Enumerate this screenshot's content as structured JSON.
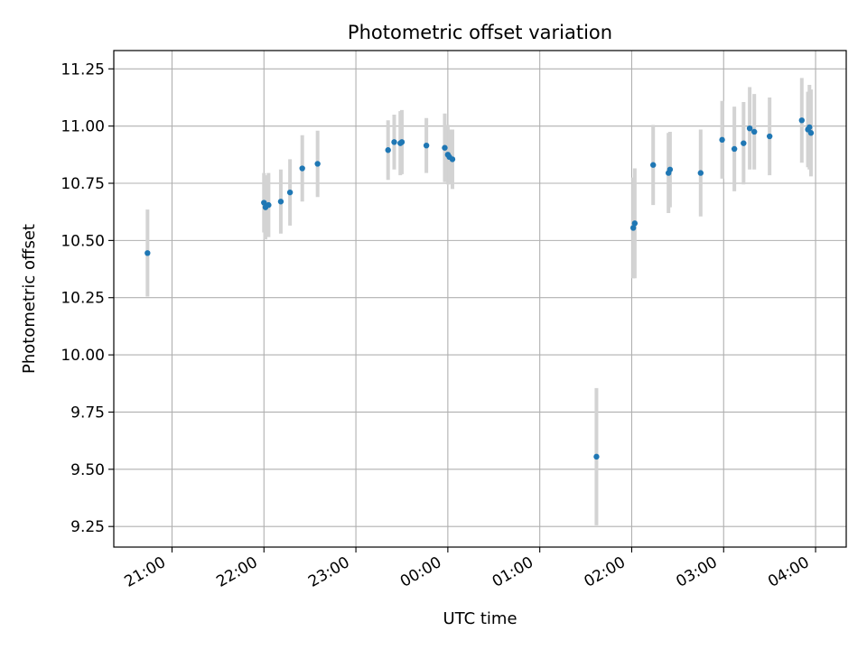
{
  "chart_data": {
    "type": "scatter",
    "title": "Photometric offset variation",
    "xlabel": "UTC time",
    "ylabel": "Photometric offset",
    "x_is_time": true,
    "xlim": [
      "20:22",
      "04:20"
    ],
    "ylim": [
      9.16,
      11.33
    ],
    "x_ticks": [
      "21:00",
      "22:00",
      "23:00",
      "00:00",
      "01:00",
      "02:00",
      "03:00",
      "04:00"
    ],
    "y_ticks": [
      "9.25",
      "9.50",
      "9.75",
      "10.00",
      "10.25",
      "10.50",
      "10.75",
      "11.00",
      "11.25"
    ],
    "grid": true,
    "marker_color": "#1f77b4",
    "errorbar_color": "#d3d3d3",
    "points": [
      {
        "t": "20:44",
        "y": 10.445,
        "err": 0.19
      },
      {
        "t": "22:00",
        "y": 10.665,
        "err": 0.13
      },
      {
        "t": "22:01",
        "y": 10.645,
        "err": 0.14
      },
      {
        "t": "22:03",
        "y": 10.655,
        "err": 0.14
      },
      {
        "t": "22:11",
        "y": 10.67,
        "err": 0.14
      },
      {
        "t": "22:17",
        "y": 10.71,
        "err": 0.145
      },
      {
        "t": "22:25",
        "y": 10.815,
        "err": 0.145
      },
      {
        "t": "22:35",
        "y": 10.835,
        "err": 0.145
      },
      {
        "t": "23:21",
        "y": 10.895,
        "err": 0.13
      },
      {
        "t": "23:25",
        "y": 10.93,
        "err": 0.12
      },
      {
        "t": "23:29",
        "y": 10.925,
        "err": 0.14
      },
      {
        "t": "23:30",
        "y": 10.93,
        "err": 0.14
      },
      {
        "t": "23:46",
        "y": 10.915,
        "err": 0.12
      },
      {
        "t": "23:58",
        "y": 10.905,
        "err": 0.15
      },
      {
        "t": "00:00",
        "y": 10.875,
        "err": 0.13
      },
      {
        "t": "00:01",
        "y": 10.865,
        "err": 0.12
      },
      {
        "t": "00:03",
        "y": 10.855,
        "err": 0.13
      },
      {
        "t": "01:37",
        "y": 9.555,
        "err": 0.3
      },
      {
        "t": "02:01",
        "y": 10.555,
        "err": 0.22
      },
      {
        "t": "02:02",
        "y": 10.575,
        "err": 0.24
      },
      {
        "t": "02:14",
        "y": 10.83,
        "err": 0.175
      },
      {
        "t": "02:24",
        "y": 10.795,
        "err": 0.175
      },
      {
        "t": "02:25",
        "y": 10.81,
        "err": 0.165
      },
      {
        "t": "02:45",
        "y": 10.795,
        "err": 0.19
      },
      {
        "t": "02:59",
        "y": 10.94,
        "err": 0.17
      },
      {
        "t": "03:07",
        "y": 10.9,
        "err": 0.185
      },
      {
        "t": "03:13",
        "y": 10.925,
        "err": 0.18
      },
      {
        "t": "03:17",
        "y": 10.99,
        "err": 0.18
      },
      {
        "t": "03:20",
        "y": 10.975,
        "err": 0.165
      },
      {
        "t": "03:30",
        "y": 10.955,
        "err": 0.17
      },
      {
        "t": "03:51",
        "y": 11.025,
        "err": 0.185
      },
      {
        "t": "03:55",
        "y": 10.985,
        "err": 0.165
      },
      {
        "t": "03:56",
        "y": 10.995,
        "err": 0.185
      },
      {
        "t": "03:57",
        "y": 10.97,
        "err": 0.19
      }
    ]
  }
}
